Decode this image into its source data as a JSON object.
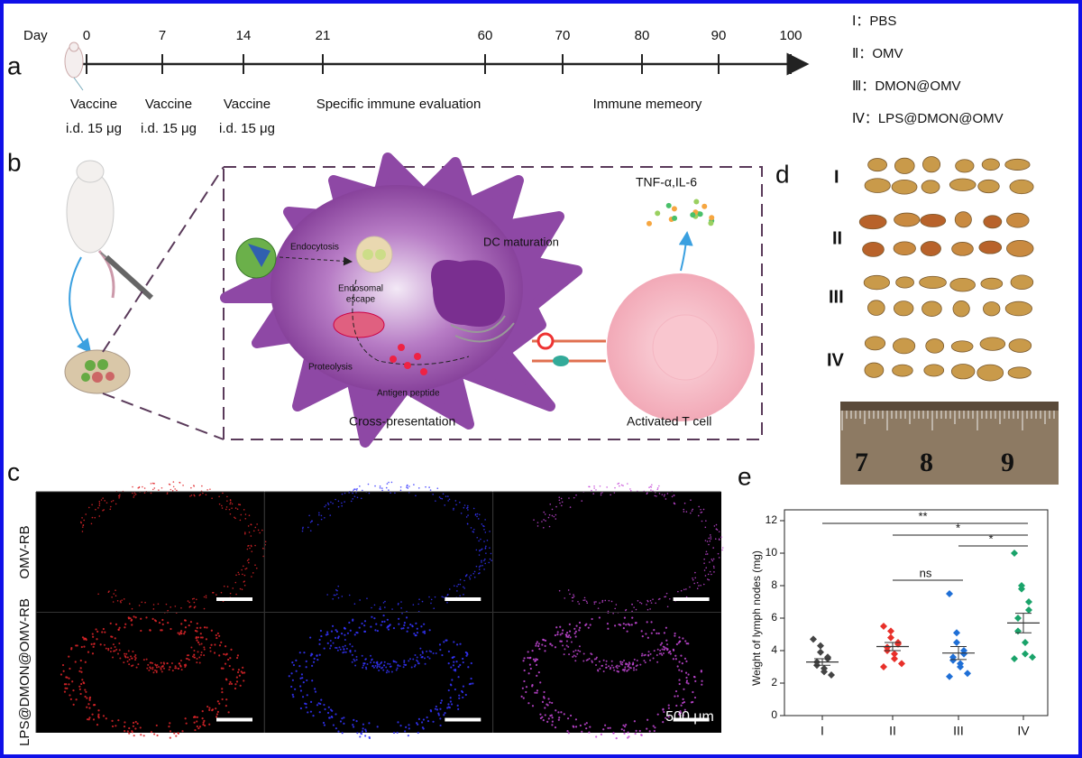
{
  "panel_labels": [
    "a",
    "b",
    "c",
    "d",
    "e"
  ],
  "timeline": {
    "axis_label": "Day",
    "days": [
      0,
      7,
      14,
      21,
      60,
      70,
      80,
      90,
      100
    ],
    "events": [
      {
        "title": "Vaccine",
        "dose": "i.d. 15 μg"
      },
      {
        "title": "Vaccine",
        "dose": "i.d. 15 μg"
      },
      {
        "title": "Vaccine",
        "dose": "i.d. 15 μg"
      }
    ],
    "phases": [
      "Specific immune evaluation",
      "Immune memeory"
    ]
  },
  "legend": [
    "Ⅰ：PBS",
    "Ⅱ：OMV",
    "Ⅲ：DMON@OMV",
    "Ⅳ：LPS@DMON@OMV"
  ],
  "schematic": {
    "labels": [
      "Endocytosis",
      "Endosomal",
      "escape",
      "DC maturation",
      "Proteolysis",
      "Antigen peptide",
      "Cross-presentation",
      "TNF-α,IL-6",
      "Activated T cell"
    ]
  },
  "panel_c": {
    "row_labels": [
      "OMV-RB",
      "LPS@DMON@OMV-RB"
    ],
    "scale_bar": "500 μm"
  },
  "panel_d": {
    "row_labels": [
      "I",
      "II",
      "III",
      "IV"
    ],
    "ruler_labels": [
      7,
      8,
      9
    ]
  },
  "chart_data": {
    "type": "scatter",
    "y_label": "Weight of lymph nodes (mg)",
    "categories": [
      "I",
      "II",
      "III",
      "IV"
    ],
    "groups": [
      {
        "color": "#444444",
        "values": [
          4.7,
          4.3,
          3.9,
          3.6,
          3.5,
          3.3,
          3.1,
          2.9,
          2.7,
          2.5
        ],
        "mean": 3.3,
        "error": 0.2
      },
      {
        "color": "#e8302a",
        "values": [
          5.5,
          5.2,
          4.8,
          4.5,
          4.4,
          4.2,
          4.0,
          3.8,
          3.5,
          3.2,
          3.0
        ],
        "mean": 4.25,
        "error": 0.25
      },
      {
        "color": "#1f6fd6",
        "values": [
          7.5,
          5.1,
          4.5,
          4.0,
          3.8,
          3.6,
          3.4,
          3.2,
          3.0,
          2.6,
          2.4
        ],
        "mean": 3.85,
        "error": 0.4
      },
      {
        "color": "#1aa36a",
        "values": [
          10.0,
          8.0,
          7.8,
          7.0,
          6.5,
          6.0,
          5.2,
          4.5,
          3.8,
          3.6,
          3.5
        ],
        "mean": 5.7,
        "error": 0.6
      }
    ],
    "ylim": [
      0,
      12
    ],
    "yticks": [
      0,
      2,
      4,
      6,
      8,
      10,
      12
    ],
    "annotations": [
      "**",
      "*",
      "*",
      "ns"
    ]
  }
}
